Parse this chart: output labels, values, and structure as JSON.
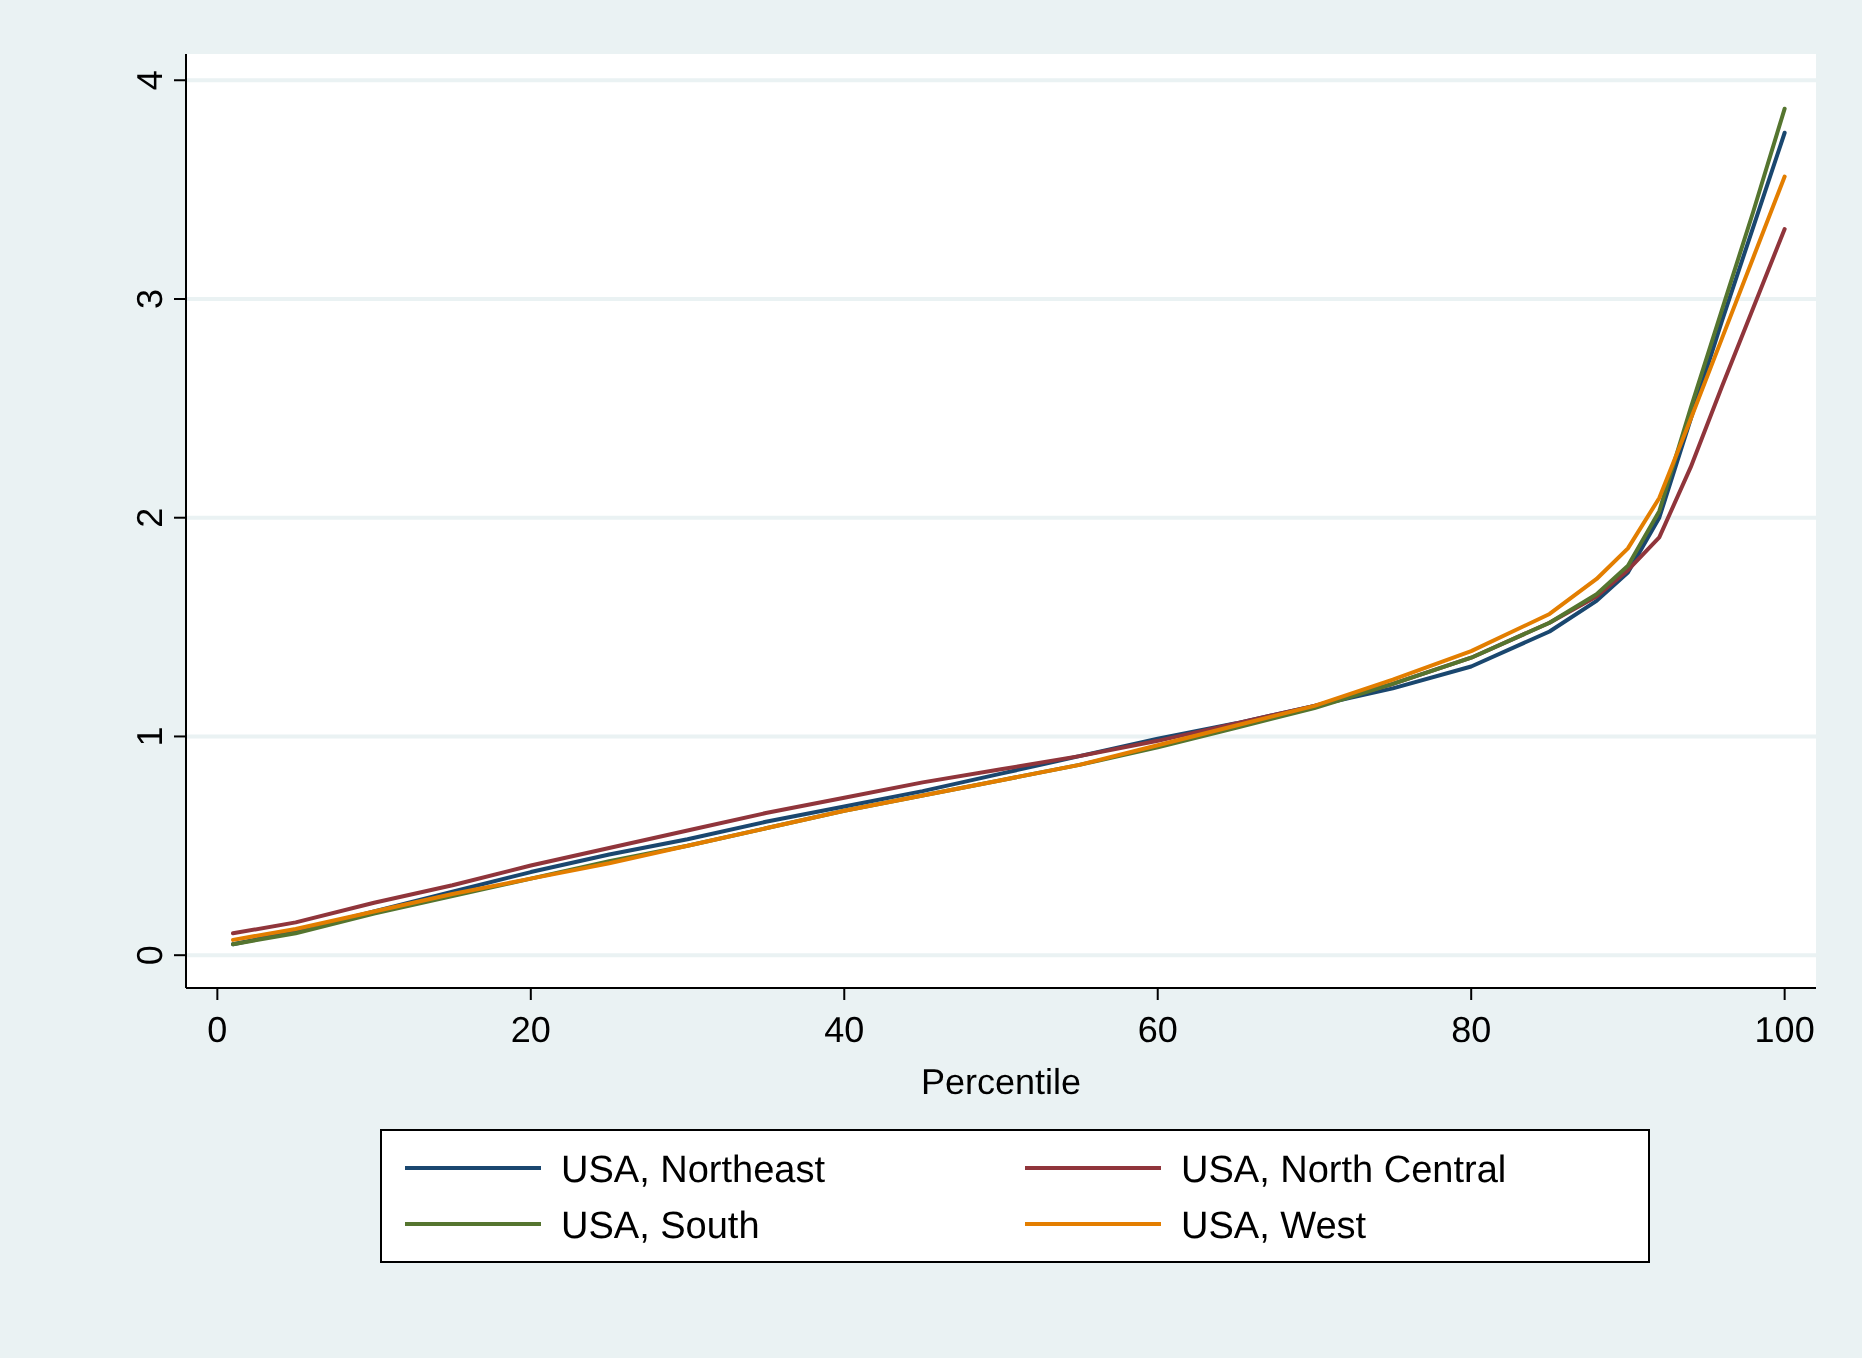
{
  "chart_data": {
    "type": "line",
    "xlabel": "Percentile",
    "x": [
      1,
      5,
      10,
      15,
      20,
      25,
      30,
      35,
      40,
      45,
      50,
      55,
      60,
      65,
      70,
      75,
      80,
      85,
      88,
      90,
      92,
      94,
      96,
      98,
      100
    ],
    "xlim": [
      -2,
      102
    ],
    "xticks": [
      0,
      20,
      40,
      60,
      80,
      100
    ],
    "ylim": [
      -0.15,
      4.12
    ],
    "yticks": [
      0,
      1,
      2,
      3,
      4
    ],
    "grid": "y",
    "legend": "bottom",
    "line_style": "solid",
    "series": [
      {
        "name": "USA, Northeast",
        "color": "#1a476f",
        "values": [
          0.05,
          0.11,
          0.2,
          0.29,
          0.38,
          0.46,
          0.53,
          0.61,
          0.68,
          0.75,
          0.83,
          0.91,
          0.99,
          1.06,
          1.14,
          1.22,
          1.32,
          1.48,
          1.62,
          1.75,
          2.0,
          2.45,
          2.9,
          3.33,
          3.76
        ]
      },
      {
        "name": "USA, North Central",
        "color": "#90353b",
        "values": [
          0.1,
          0.15,
          0.24,
          0.32,
          0.41,
          0.49,
          0.57,
          0.65,
          0.72,
          0.79,
          0.85,
          0.91,
          0.98,
          1.06,
          1.14,
          1.24,
          1.36,
          1.52,
          1.64,
          1.76,
          1.91,
          2.23,
          2.6,
          2.96,
          3.32
        ]
      },
      {
        "name": "USA, South",
        "color": "#55752f",
        "values": [
          0.05,
          0.1,
          0.19,
          0.27,
          0.35,
          0.43,
          0.5,
          0.58,
          0.66,
          0.73,
          0.8,
          0.87,
          0.95,
          1.04,
          1.13,
          1.24,
          1.36,
          1.52,
          1.65,
          1.78,
          2.03,
          2.5,
          2.95,
          3.4,
          3.87
        ]
      },
      {
        "name": "USA, West",
        "color": "#e37e00",
        "values": [
          0.07,
          0.12,
          0.2,
          0.28,
          0.35,
          0.42,
          0.5,
          0.58,
          0.66,
          0.73,
          0.8,
          0.87,
          0.96,
          1.05,
          1.14,
          1.26,
          1.39,
          1.56,
          1.72,
          1.86,
          2.09,
          2.45,
          2.82,
          3.19,
          3.56
        ]
      }
    ]
  }
}
